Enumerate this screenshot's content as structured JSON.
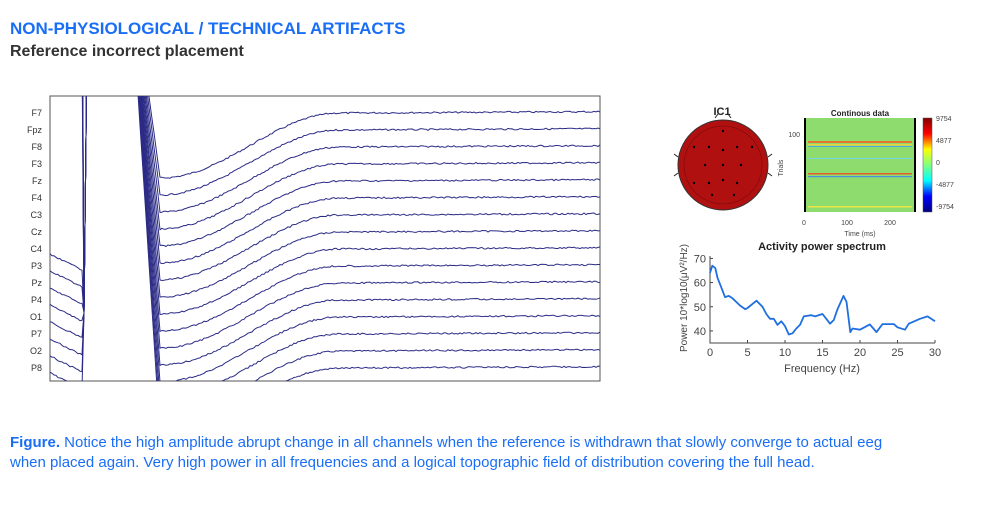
{
  "header": {
    "title": "NON-PHYSIOLOGICAL / TECHNICAL ARTIFACTS",
    "subtitle": "Reference incorrect placement"
  },
  "caption": {
    "lead": "Figure.",
    "text": " Notice the high amplitude abrupt change in all channels when the reference is withdrawn that slowly converge to actual eeg when placed again. Very high power in all frequencies and a logical topographic field of distribution covering the full head."
  },
  "colors": {
    "accent": "#1a6ef5",
    "trace": "#2b2b86",
    "spectrum": "#1f6fe0",
    "topo": "#b01010"
  },
  "chart_data": [
    {
      "type": "line",
      "channels": [
        "F7",
        "Fpz",
        "F8",
        "F3",
        "Fz",
        "F4",
        "C3",
        "Cz",
        "C4",
        "P3",
        "Pz",
        "P4",
        "O1",
        "P7",
        "O2",
        "P8"
      ]
    },
    {
      "type": "topomap",
      "title": "IC1"
    },
    {
      "type": "heatmap",
      "title": "Continous data",
      "xlabel": "Time (ms)",
      "ylabel": "Trials",
      "xticks": [
        "0",
        "100",
        "200"
      ],
      "yticks": [
        "100"
      ],
      "colorbar_ticks": [
        "9754",
        "4877",
        "0",
        "-4877",
        "-9754"
      ]
    },
    {
      "type": "line",
      "title": "Activity power spectrum",
      "xlabel": "Frequency (Hz)",
      "ylabel": "Power 10*log10(μV²/Hz)",
      "xlim": [
        0,
        30
      ],
      "ylim": [
        35,
        71
      ],
      "xticks": [
        "0",
        "5",
        "10",
        "15",
        "20",
        "25",
        "30"
      ],
      "yticks": [
        "40",
        "50",
        "60",
        "70"
      ],
      "x": [
        0,
        0.3,
        0.7,
        1,
        1.5,
        2,
        2.5,
        3,
        4,
        4.7,
        5,
        6.2,
        7,
        7.5,
        8,
        8.5,
        9,
        9.5,
        10,
        10.5,
        11,
        11.5,
        12,
        12.5,
        13.5,
        14,
        15,
        15.5,
        16,
        16.5,
        17,
        17.8,
        18.2,
        18.7,
        19,
        20,
        21.3,
        22.2,
        23,
        24.5,
        25,
        26,
        26.5,
        28,
        29,
        30
      ],
      "y": [
        64,
        67,
        66,
        62,
        58,
        54,
        54.5,
        53.5,
        50.5,
        49,
        49.5,
        52.5,
        50,
        47,
        45,
        45,
        42.5,
        44,
        42,
        38.5,
        39,
        41,
        42.5,
        46,
        46.5,
        46,
        47,
        45,
        43,
        44.5,
        49,
        54.5,
        52,
        39.5,
        41,
        40.5,
        42.7,
        39.5,
        42.8,
        42.8,
        41.5,
        40.5,
        43,
        45,
        46,
        44
      ]
    }
  ]
}
